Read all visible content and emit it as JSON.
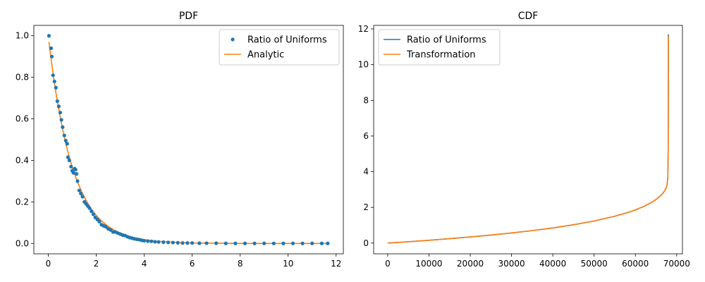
{
  "chart_data": [
    {
      "type": "scatter",
      "title": "PDF",
      "xlabel": "",
      "ylabel": "",
      "xlim": [
        -0.6,
        12.3
      ],
      "ylim": [
        -0.05,
        1.05
      ],
      "xticks": [
        0,
        2,
        4,
        6,
        8,
        10,
        12
      ],
      "yticks": [
        0.0,
        0.2,
        0.4,
        0.6,
        0.8,
        1.0
      ],
      "xtick_labels": [
        "0",
        "2",
        "4",
        "6",
        "8",
        "10",
        "12"
      ],
      "ytick_labels": [
        "0.0",
        "0.2",
        "0.4",
        "0.6",
        "0.8",
        "1.0"
      ],
      "grid": false,
      "legend_position": "top-right",
      "series": [
        {
          "name": "Ratio of Uniforms",
          "kind": "points",
          "color": "#1f77b4",
          "x": [
            0.03,
            0.12,
            0.15,
            0.2,
            0.26,
            0.32,
            0.38,
            0.44,
            0.5,
            0.55,
            0.6,
            0.67,
            0.73,
            0.79,
            0.82,
            0.88,
            0.95,
            1.0,
            1.05,
            1.1,
            1.14,
            1.18,
            1.22,
            1.29,
            1.36,
            1.43,
            1.51,
            1.58,
            1.65,
            1.72,
            1.8,
            1.88,
            1.96,
            2.05,
            2.13,
            2.22,
            2.31,
            2.4,
            2.5,
            2.6,
            2.7,
            2.8,
            2.9,
            3.0,
            3.1,
            3.2,
            3.3,
            3.4,
            3.5,
            3.6,
            3.7,
            3.8,
            3.9,
            4.0,
            4.15,
            4.3,
            4.45,
            4.6,
            4.8,
            5.0,
            5.2,
            5.4,
            5.6,
            5.8,
            6.0,
            6.3,
            6.6,
            7.0,
            7.4,
            7.8,
            8.2,
            8.6,
            9.0,
            9.4,
            9.8,
            10.2,
            10.6,
            11.0,
            11.4,
            11.65
          ],
          "y": [
            1.0,
            0.94,
            0.9,
            0.81,
            0.78,
            0.75,
            0.685,
            0.66,
            0.63,
            0.595,
            0.56,
            0.52,
            0.495,
            0.48,
            0.415,
            0.4,
            0.37,
            0.35,
            0.34,
            0.36,
            0.355,
            0.335,
            0.3,
            0.255,
            0.24,
            0.225,
            0.2,
            0.19,
            0.18,
            0.17,
            0.155,
            0.14,
            0.125,
            0.115,
            0.105,
            0.09,
            0.085,
            0.08,
            0.07,
            0.065,
            0.055,
            0.055,
            0.05,
            0.045,
            0.04,
            0.038,
            0.032,
            0.028,
            0.025,
            0.022,
            0.02,
            0.018,
            0.015,
            0.013,
            0.011,
            0.01,
            0.008,
            0.007,
            0.006,
            0.005,
            0.004,
            0.003,
            0.002,
            0.002,
            0.002,
            0.001,
            0.001,
            0.001,
            0.0,
            0.0,
            0.0,
            0.0,
            0.0,
            0.0,
            0.0,
            0.0,
            0.0,
            0.0,
            0.0,
            0.0
          ]
        },
        {
          "name": "Analytic",
          "kind": "line",
          "color": "#ff7f0e",
          "x": [
            0.03,
            0.1,
            0.2,
            0.3,
            0.4,
            0.5,
            0.6,
            0.7,
            0.8,
            0.9,
            1.0,
            1.2,
            1.4,
            1.6,
            1.8,
            2.0,
            2.25,
            2.5,
            2.75,
            3.0,
            3.25,
            3.5,
            3.75,
            4.0,
            4.5,
            5.0,
            5.5,
            6.0,
            7.0,
            8.0,
            9.0,
            10.0,
            11.0,
            11.65
          ],
          "y": [
            0.97,
            0.905,
            0.819,
            0.741,
            0.67,
            0.607,
            0.549,
            0.497,
            0.449,
            0.407,
            0.368,
            0.301,
            0.247,
            0.202,
            0.165,
            0.135,
            0.105,
            0.082,
            0.064,
            0.05,
            0.039,
            0.03,
            0.024,
            0.018,
            0.011,
            0.007,
            0.004,
            0.002,
            0.001,
            0.0,
            0.0,
            0.0,
            0.0,
            0.0
          ]
        }
      ]
    },
    {
      "type": "line",
      "title": "CDF",
      "xlabel": "",
      "ylabel": "",
      "xlim": [
        -3400,
        71400
      ],
      "ylim": [
        -0.6,
        12.2
      ],
      "xticks": [
        0,
        10000,
        20000,
        30000,
        40000,
        50000,
        60000,
        70000
      ],
      "yticks": [
        0,
        2,
        4,
        6,
        8,
        10,
        12
      ],
      "xtick_labels": [
        "0",
        "10000",
        "20000",
        "30000",
        "40000",
        "50000",
        "60000",
        "70000"
      ],
      "ytick_labels": [
        "0",
        "2",
        "4",
        "6",
        "8",
        "10",
        "12"
      ],
      "grid": false,
      "legend_position": "top-left",
      "series": [
        {
          "name": "Ratio of Uniforms",
          "kind": "line",
          "color": "#1f77b4",
          "x": [
            0,
            5000,
            10000,
            15000,
            20000,
            25000,
            30000,
            35000,
            40000,
            45000,
            50000,
            55000,
            58000,
            60000,
            62000,
            64000,
            65000,
            66000,
            66500,
            67000,
            67300,
            67500,
            67700,
            67850,
            67950,
            68000
          ],
          "y": [
            0.0,
            0.076,
            0.159,
            0.248,
            0.345,
            0.451,
            0.568,
            0.699,
            0.85,
            1.026,
            1.237,
            1.504,
            1.7,
            1.859,
            2.05,
            2.289,
            2.443,
            2.633,
            2.75,
            2.9,
            3.02,
            3.12,
            3.3,
            3.7,
            5.2,
            11.7
          ]
        },
        {
          "name": "Transformation",
          "kind": "line",
          "color": "#ff7f0e",
          "x": [
            0,
            5000,
            10000,
            15000,
            20000,
            25000,
            30000,
            35000,
            40000,
            45000,
            50000,
            55000,
            58000,
            60000,
            62000,
            64000,
            65000,
            66000,
            66500,
            67000,
            67300,
            67500,
            67700,
            67850,
            67950,
            68000
          ],
          "y": [
            0.0,
            0.076,
            0.159,
            0.248,
            0.345,
            0.451,
            0.568,
            0.699,
            0.85,
            1.026,
            1.237,
            1.504,
            1.7,
            1.859,
            2.05,
            2.289,
            2.443,
            2.633,
            2.75,
            2.9,
            3.02,
            3.12,
            3.3,
            3.7,
            5.2,
            11.6
          ]
        }
      ]
    }
  ]
}
